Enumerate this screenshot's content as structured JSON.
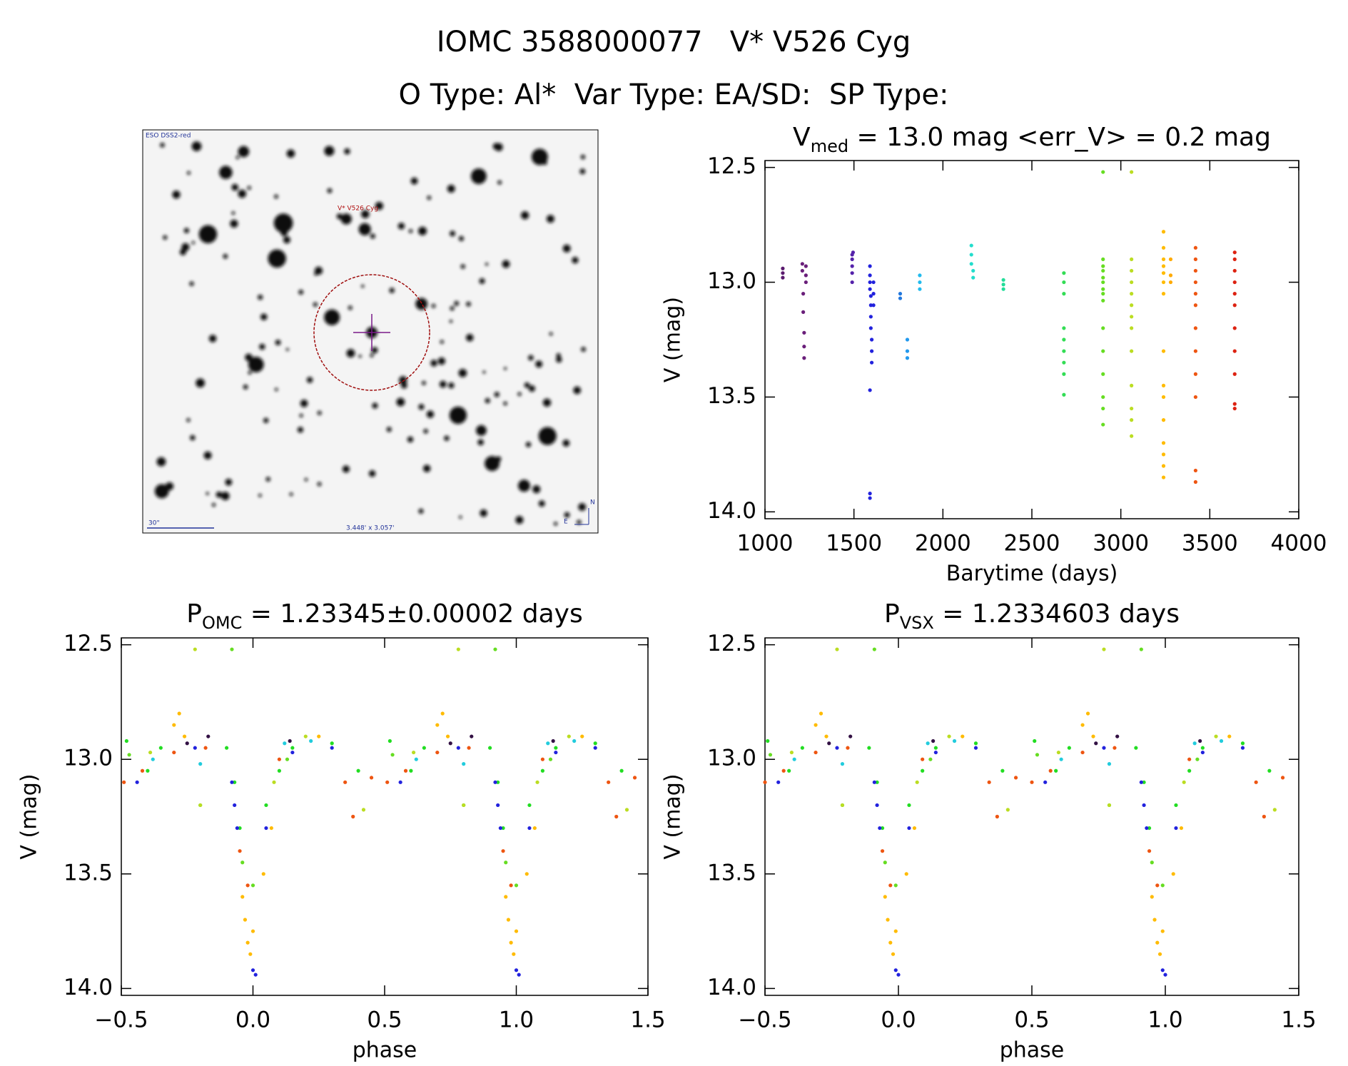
{
  "header": {
    "title": "IOMC 3588000077   V* V526 Cyg",
    "subtitle": "O Type: Al*  Var Type: EA/SD:  SP Type:"
  },
  "image": {
    "survey": "ESO DSS2-red",
    "target": "V* V526 Cyg",
    "scale": "30\"",
    "size": "3.448' x 3.057'",
    "north": "N",
    "east": "E"
  },
  "chart_data": [
    {
      "type": "scatter",
      "title_parts": [
        "V",
        "med",
        " = 13.0 mag <err_V> = 0.2 mag"
      ],
      "xlabel": "Barytime (days)",
      "ylabel": "V (mag)",
      "xlim": [
        1000,
        4000
      ],
      "ylim": [
        14.03,
        12.47
      ],
      "xticks": [
        1000,
        1500,
        2000,
        2500,
        3000,
        3500,
        4000
      ],
      "yticks": [
        12.5,
        {
          "value": 13,
          "label": "13.0"
        },
        13.5,
        {
          "value": 14,
          "label": "14.0"
        }
      ],
      "series": [
        {
          "color": "#5a1a6e",
          "x": [
            1100,
            1100,
            1100
          ],
          "values": [
            12.94,
            12.96,
            12.98
          ]
        },
        {
          "color": "#6a1f7a",
          "x": [
            1210,
            1210,
            1215,
            1215,
            1220,
            1220,
            1220,
            1230,
            1230,
            1230
          ],
          "values": [
            12.92,
            12.95,
            13.05,
            13.13,
            13.22,
            13.28,
            13.33,
            12.93,
            12.97,
            13.0
          ]
        },
        {
          "color": "#5522aa",
          "x": [
            1490,
            1490,
            1490,
            1490,
            1490,
            1495
          ],
          "values": [
            12.88,
            12.9,
            12.93,
            12.96,
            13.0,
            12.87
          ]
        },
        {
          "color": "#2222dd",
          "x": [
            1590,
            1590,
            1590,
            1590,
            1595,
            1595,
            1595,
            1595,
            1600,
            1600,
            1600,
            1590,
            1590,
            1590,
            1610,
            1610,
            1610
          ],
          "values": [
            12.93,
            12.97,
            13.0,
            13.03,
            13.06,
            13.1,
            13.15,
            13.2,
            13.25,
            13.3,
            13.35,
            13.47,
            13.92,
            13.94,
            13.0,
            13.05,
            13.1
          ]
        },
        {
          "color": "#2277dd",
          "x": [
            1760,
            1760
          ],
          "values": [
            13.05,
            13.07
          ]
        },
        {
          "color": "#2299ee",
          "x": [
            1800,
            1800,
            1800
          ],
          "values": [
            13.25,
            13.3,
            13.33
          ]
        },
        {
          "color": "#22bbee",
          "x": [
            1870,
            1870,
            1870
          ],
          "values": [
            12.97,
            13.0,
            13.03
          ]
        },
        {
          "color": "#22ddcc",
          "x": [
            2160,
            2160,
            2160,
            2170,
            2170
          ],
          "values": [
            12.84,
            12.88,
            12.92,
            12.95,
            12.98
          ]
        },
        {
          "color": "#22dd99",
          "x": [
            2340,
            2340,
            2340
          ],
          "values": [
            12.99,
            13.01,
            13.03
          ]
        },
        {
          "color": "#33dd55",
          "x": [
            2680,
            2680,
            2680,
            2680,
            2680,
            2680,
            2680,
            2680,
            2680
          ],
          "values": [
            12.96,
            13.0,
            13.05,
            13.2,
            13.25,
            13.3,
            13.35,
            13.4,
            13.49
          ]
        },
        {
          "color": "#66dd22",
          "x": [
            2900,
            2900,
            2900,
            2900,
            2900,
            2900,
            2900,
            2900,
            2900,
            2900,
            2900,
            2900,
            2900,
            2900,
            2900
          ],
          "values": [
            12.52,
            12.9,
            12.93,
            12.95,
            12.98,
            13.0,
            13.03,
            13.05,
            13.08,
            13.2,
            13.3,
            13.4,
            13.5,
            13.55,
            13.62
          ]
        },
        {
          "color": "#bbdd22",
          "x": [
            3060,
            3060,
            3060,
            3060,
            3060,
            3060,
            3060,
            3060,
            3060,
            3060,
            3060,
            3060,
            3060
          ],
          "values": [
            12.52,
            12.9,
            12.95,
            13.0,
            13.05,
            13.1,
            13.15,
            13.2,
            13.3,
            13.45,
            13.55,
            13.6,
            13.67
          ]
        },
        {
          "color": "#ffbb00",
          "x": [
            3240,
            3240,
            3240,
            3240,
            3240,
            3240,
            3240,
            3240,
            3240,
            3240,
            3240,
            3240,
            3240,
            3240,
            3240
          ],
          "values": [
            12.78,
            12.85,
            12.9,
            12.93,
            12.96,
            13.0,
            13.05,
            13.3,
            13.45,
            13.5,
            13.6,
            13.7,
            13.75,
            13.8,
            13.85
          ]
        },
        {
          "color": "#ffaa00",
          "x": [
            3280,
            3280,
            3280
          ],
          "values": [
            12.9,
            12.97,
            13.0
          ]
        },
        {
          "color": "#ee5511",
          "x": [
            3420,
            3420,
            3420,
            3420,
            3420,
            3420,
            3420,
            3420,
            3420,
            3420,
            3420,
            3420
          ],
          "values": [
            12.85,
            12.9,
            12.95,
            13.0,
            13.05,
            13.1,
            13.2,
            13.3,
            13.4,
            13.5,
            13.82,
            13.87
          ]
        },
        {
          "color": "#dd2211",
          "x": [
            3640,
            3640,
            3640,
            3640,
            3640,
            3640,
            3640,
            3640,
            3640,
            3640,
            3640
          ],
          "values": [
            12.87,
            12.9,
            12.95,
            13.0,
            13.05,
            13.1,
            13.2,
            13.3,
            13.4,
            13.53,
            13.55
          ]
        }
      ]
    },
    {
      "type": "scatter",
      "title_parts": [
        "P",
        "OMC",
        " = 1.23345±0.00002 days"
      ],
      "xlabel": "phase",
      "ylabel": "V (mag)",
      "xlim": [
        -0.5,
        1.5
      ],
      "ylim": [
        14.03,
        12.47
      ],
      "xticks": [
        {
          "value": -0.5,
          "label": "−0.5"
        },
        {
          "value": 0,
          "label": "0.0"
        },
        0.5,
        {
          "value": 1,
          "label": "1.0"
        },
        1.5
      ],
      "yticks": [
        12.5,
        {
          "value": 13,
          "label": "13.0"
        },
        13.5,
        {
          "value": 14,
          "label": "14.0"
        }
      ],
      "series": [
        {
          "color": "#22dd22",
          "x": [
            -0.48,
            -0.4,
            -0.35,
            -0.2,
            -0.1,
            -0.07,
            -0.05,
            0.05,
            0.1,
            0.15,
            0.3,
            0.4,
            0.52,
            0.6,
            0.65,
            0.8,
            0.9,
            0.93,
            0.95,
            1.05,
            1.1,
            1.15,
            1.3,
            1.4
          ],
          "values": [
            12.92,
            13.05,
            12.95,
            13.2,
            12.95,
            13.1,
            13.3,
            13.2,
            13.05,
            12.95,
            12.93,
            13.05,
            12.92,
            13.05,
            12.95,
            13.2,
            12.95,
            13.1,
            13.3,
            13.2,
            13.05,
            12.95,
            12.93,
            13.05
          ]
        },
        {
          "color": "#ffbb00",
          "x": [
            -0.3,
            -0.28,
            -0.26,
            -0.04,
            -0.03,
            -0.02,
            -0.01,
            0,
            0.04,
            0.07,
            0.25,
            0.7,
            0.72,
            0.74,
            0.96,
            0.97,
            0.98,
            0.99,
            1,
            1.04,
            1.07,
            1.25
          ],
          "values": [
            12.85,
            12.8,
            12.9,
            13.6,
            13.7,
            13.8,
            13.85,
            13.75,
            13.5,
            13.3,
            12.9,
            12.85,
            12.8,
            12.9,
            13.6,
            13.7,
            13.8,
            13.85,
            13.75,
            13.5,
            13.3,
            12.9
          ]
        },
        {
          "color": "#ee5511",
          "x": [
            -0.49,
            -0.42,
            -0.3,
            -0.18,
            -0.05,
            -0.02,
            0.1,
            0.35,
            0.38,
            0.45,
            0.51,
            0.58,
            0.7,
            0.82,
            0.95,
            0.98,
            1.1,
            1.35,
            1.38,
            1.45
          ],
          "values": [
            13.1,
            13.05,
            12.97,
            12.95,
            13.4,
            13.55,
            13.0,
            13.1,
            13.25,
            13.08,
            13.1,
            13.05,
            12.97,
            12.95,
            13.4,
            13.55,
            13.0,
            13.1,
            13.25,
            13.08
          ]
        },
        {
          "color": "#2222dd",
          "x": [
            -0.44,
            -0.22,
            -0.08,
            -0.07,
            -0.06,
            0,
            0.01,
            0.05,
            0.15,
            0.3,
            0.56,
            0.78,
            0.92,
            0.93,
            0.94,
            1,
            1.01,
            1.05,
            1.15,
            1.3
          ],
          "values": [
            13.1,
            12.95,
            13.1,
            13.2,
            13.3,
            13.92,
            13.94,
            13.3,
            12.97,
            12.95,
            13.1,
            12.95,
            13.1,
            13.2,
            13.3,
            13.92,
            13.94,
            13.3,
            12.97,
            12.95
          ]
        },
        {
          "color": "#22ccdd",
          "x": [
            -0.38,
            -0.2,
            0.12,
            0.22,
            0.62,
            0.8,
            1.12,
            1.22
          ],
          "values": [
            13.0,
            13.02,
            12.93,
            12.92,
            13.0,
            13.02,
            12.93,
            12.92
          ]
        },
        {
          "color": "#331144",
          "x": [
            -0.25,
            -0.17,
            0.14,
            0.75,
            0.83,
            1.14
          ],
          "values": [
            12.93,
            12.9,
            12.92,
            12.93,
            12.9,
            12.92
          ]
        },
        {
          "color": "#bbdd22",
          "x": [
            -0.39,
            -0.22,
            -0.2,
            0.08,
            0.2,
            0.42,
            0.61,
            0.78,
            0.8,
            1.08,
            1.2,
            1.42
          ],
          "values": [
            12.97,
            12.52,
            13.2,
            13.1,
            12.9,
            13.22,
            12.97,
            12.52,
            13.2,
            13.1,
            12.9,
            13.22
          ]
        },
        {
          "color": "#66dd22",
          "x": [
            -0.47,
            -0.08,
            -0.04,
            0,
            0.13,
            0.53,
            0.92,
            0.96,
            1,
            1.13
          ],
          "values": [
            12.98,
            12.52,
            13.45,
            13.55,
            13.0,
            12.98,
            12.52,
            13.45,
            13.55,
            13.0
          ]
        }
      ]
    },
    {
      "type": "scatter",
      "title_parts": [
        "P",
        "VSX",
        " = 1.2334603 days"
      ],
      "xlabel": "phase",
      "ylabel": "V (mag)",
      "xlim": [
        -0.5,
        1.5
      ],
      "ylim": [
        14.03,
        12.47
      ],
      "xticks": [
        {
          "value": -0.5,
          "label": "−0.5"
        },
        {
          "value": 0,
          "label": "0.0"
        },
        0.5,
        {
          "value": 1,
          "label": "1.0"
        },
        1.5
      ],
      "yticks": [
        12.5,
        {
          "value": 13,
          "label": "13.0"
        },
        13.5,
        {
          "value": 14,
          "label": "14.0"
        }
      ],
      "series": [
        {
          "color": "#22dd22",
          "x": [
            -0.49,
            -0.41,
            -0.36,
            -0.21,
            -0.11,
            -0.08,
            -0.06,
            0.04,
            0.09,
            0.14,
            0.29,
            0.39,
            0.51,
            0.59,
            0.64,
            0.79,
            0.89,
            0.92,
            0.94,
            1.04,
            1.09,
            1.14,
            1.29,
            1.39
          ],
          "values": [
            12.92,
            13.05,
            12.95,
            13.2,
            12.95,
            13.1,
            13.3,
            13.2,
            13.05,
            12.95,
            12.93,
            13.05,
            12.92,
            13.05,
            12.95,
            13.2,
            12.95,
            13.1,
            13.3,
            13.2,
            13.05,
            12.95,
            12.93,
            13.05
          ]
        },
        {
          "color": "#ffbb00",
          "x": [
            -0.31,
            -0.29,
            -0.27,
            -0.05,
            -0.04,
            -0.03,
            -0.02,
            -0.01,
            0.03,
            0.06,
            0.24,
            0.69,
            0.71,
            0.73,
            0.95,
            0.96,
            0.97,
            0.98,
            0.99,
            1.03,
            1.06,
            1.24
          ],
          "values": [
            12.85,
            12.8,
            12.9,
            13.6,
            13.7,
            13.8,
            13.85,
            13.75,
            13.5,
            13.3,
            12.9,
            12.85,
            12.8,
            12.9,
            13.6,
            13.7,
            13.8,
            13.85,
            13.75,
            13.5,
            13.3,
            12.9
          ]
        },
        {
          "color": "#ee5511",
          "x": [
            -0.5,
            -0.43,
            -0.31,
            -0.19,
            -0.06,
            -0.03,
            0.09,
            0.34,
            0.37,
            0.44,
            0.5,
            0.57,
            0.69,
            0.81,
            0.94,
            0.97,
            1.09,
            1.34,
            1.37,
            1.44
          ],
          "values": [
            13.1,
            13.05,
            12.97,
            12.95,
            13.4,
            13.55,
            13.0,
            13.1,
            13.25,
            13.08,
            13.1,
            13.05,
            12.97,
            12.95,
            13.4,
            13.55,
            13.0,
            13.1,
            13.25,
            13.08
          ]
        },
        {
          "color": "#2222dd",
          "x": [
            -0.45,
            -0.23,
            -0.09,
            -0.08,
            -0.07,
            -0.01,
            0,
            0.04,
            0.14,
            0.29,
            0.55,
            0.77,
            0.91,
            0.92,
            0.93,
            0.99,
            1,
            1.04,
            1.14,
            1.29
          ],
          "values": [
            13.1,
            12.95,
            13.1,
            13.2,
            13.3,
            13.92,
            13.94,
            13.3,
            12.97,
            12.95,
            13.1,
            12.95,
            13.1,
            13.2,
            13.3,
            13.92,
            13.94,
            13.3,
            12.97,
            12.95
          ]
        },
        {
          "color": "#22ccdd",
          "x": [
            -0.39,
            -0.21,
            0.11,
            0.21,
            0.61,
            0.79,
            1.11,
            1.21
          ],
          "values": [
            13.0,
            13.02,
            12.93,
            12.92,
            13.0,
            13.02,
            12.93,
            12.92
          ]
        },
        {
          "color": "#331144",
          "x": [
            -0.26,
            -0.18,
            0.13,
            0.74,
            0.82,
            1.13
          ],
          "values": [
            12.93,
            12.9,
            12.92,
            12.93,
            12.9,
            12.92
          ]
        },
        {
          "color": "#bbdd22",
          "x": [
            -0.4,
            -0.23,
            -0.21,
            0.07,
            0.19,
            0.41,
            0.6,
            0.77,
            0.79,
            1.07,
            1.19,
            1.41
          ],
          "values": [
            12.97,
            12.52,
            13.2,
            13.1,
            12.9,
            13.22,
            12.97,
            12.52,
            13.2,
            13.1,
            12.9,
            13.22
          ]
        },
        {
          "color": "#66dd22",
          "x": [
            -0.48,
            -0.09,
            -0.05,
            -0.01,
            0.12,
            0.52,
            0.91,
            0.95,
            0.99,
            1.12
          ],
          "values": [
            12.98,
            12.52,
            13.45,
            13.55,
            13.0,
            12.98,
            12.52,
            13.45,
            13.55,
            13.0
          ]
        }
      ]
    }
  ]
}
